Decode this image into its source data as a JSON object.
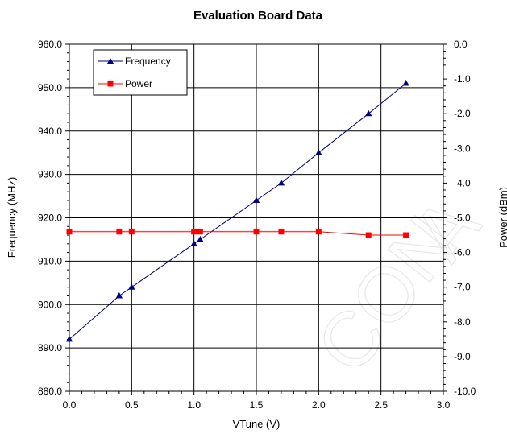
{
  "chart_data": {
    "type": "line",
    "title": "Evaluation Board Data",
    "xlabel": "VTune (V)",
    "ylabel": "Frequency (MHz)",
    "y2label": "Power (dBm)",
    "xlim": [
      0,
      3
    ],
    "ylim": [
      880,
      960
    ],
    "y2lim": [
      -10,
      0
    ],
    "xticks": [
      "0.0",
      "0.5",
      "1.0",
      "1.5",
      "2.0",
      "2.5",
      "3.0"
    ],
    "yticks": [
      "880.0",
      "890.0",
      "900.0",
      "910.0",
      "920.0",
      "930.0",
      "940.0",
      "950.0",
      "960.0"
    ],
    "y2ticks": [
      "-10.0",
      "-9.0",
      "-8.0",
      "-7.0",
      "-6.0",
      "-5.0",
      "-4.0",
      "-3.0",
      "-2.0",
      "-1.0",
      "0.0"
    ],
    "grid": true,
    "legend_position": "top-left",
    "series": [
      {
        "name": "Frequency",
        "axis": "left",
        "color": "#000080",
        "marker": "triangle",
        "x": [
          0.0,
          0.4,
          0.5,
          1.0,
          1.05,
          1.5,
          1.7,
          2.0,
          2.4,
          2.7
        ],
        "y": [
          892,
          902,
          904,
          914,
          915,
          924,
          928,
          935,
          944,
          951
        ]
      },
      {
        "name": "Power",
        "axis": "right",
        "color": "#ff0000",
        "marker": "square",
        "x": [
          0.0,
          0.4,
          0.5,
          1.0,
          1.05,
          1.5,
          1.7,
          2.0,
          2.4,
          2.7
        ],
        "y": [
          -5.4,
          -5.4,
          -5.4,
          -5.4,
          -5.4,
          -5.4,
          -5.4,
          -5.4,
          -5.5,
          -5.5
        ]
      }
    ]
  }
}
